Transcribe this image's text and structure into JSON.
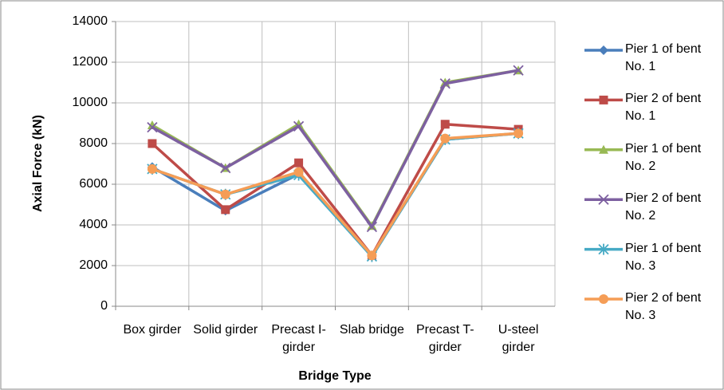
{
  "chart_data": {
    "type": "line",
    "xlabel": "Bridge Type",
    "ylabel": "Axial Force (kN)",
    "categories": [
      "Box girder",
      "Solid girder",
      "Precast I-girder",
      "Slab bridge",
      "Precast T-girder",
      "U-steel girder"
    ],
    "series": [
      {
        "name": "Pier 1 of bent No. 1",
        "color": "#4a7ebb",
        "marker": "diamond",
        "values": [
          6850,
          4700,
          6500,
          2450,
          8200,
          8500
        ]
      },
      {
        "name": "Pier 2 of bent No. 1",
        "color": "#be4b48",
        "marker": "square",
        "values": [
          8000,
          4750,
          7050,
          2500,
          8950,
          8700
        ]
      },
      {
        "name": "Pier 1 of bent No. 2",
        "color": "#98b954",
        "marker": "triangle",
        "values": [
          8900,
          6800,
          8950,
          3950,
          11000,
          11600
        ]
      },
      {
        "name": "Pier 2 of bent No. 2",
        "color": "#7d60a0",
        "marker": "x",
        "values": [
          8800,
          6800,
          8850,
          3900,
          10950,
          11600
        ]
      },
      {
        "name": "Pier 1 of bent No. 3",
        "color": "#46aac5",
        "marker": "star",
        "values": [
          6750,
          5500,
          6450,
          2450,
          8200,
          8500
        ]
      },
      {
        "name": "Pier 2 of bent No. 3",
        "color": "#f59d56",
        "marker": "circle",
        "values": [
          6750,
          5500,
          6600,
          2500,
          8250,
          8500
        ]
      }
    ],
    "ylim": [
      0,
      14000
    ],
    "yticks": [
      0,
      2000,
      4000,
      6000,
      8000,
      10000,
      12000,
      14000
    ],
    "grid": true,
    "legend": "right"
  }
}
